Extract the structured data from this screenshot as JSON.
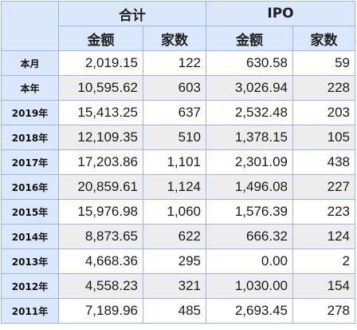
{
  "table": {
    "groups": [
      {
        "label": "合计"
      },
      {
        "label": "IPO"
      }
    ],
    "subheaders": [
      "金额",
      "家数",
      "金额",
      "家数"
    ],
    "rows": [
      {
        "label": "本月",
        "values": [
          "2,019.15",
          "122",
          "630.58",
          "59"
        ]
      },
      {
        "label": "本年",
        "values": [
          "10,595.62",
          "603",
          "3,026.94",
          "228"
        ]
      },
      {
        "label": "2019年",
        "values": [
          "15,413.25",
          "637",
          "2,532.48",
          "203"
        ]
      },
      {
        "label": "2018年",
        "values": [
          "12,109.35",
          "510",
          "1,378.15",
          "105"
        ]
      },
      {
        "label": "2017年",
        "values": [
          "17,203.86",
          "1,101",
          "2,301.09",
          "438"
        ]
      },
      {
        "label": "2016年",
        "values": [
          "20,859.61",
          "1,124",
          "1,496.08",
          "227"
        ]
      },
      {
        "label": "2015年",
        "values": [
          "15,976.98",
          "1,060",
          "1,576.39",
          "223"
        ]
      },
      {
        "label": "2014年",
        "values": [
          "8,873.65",
          "622",
          "666.32",
          "124"
        ]
      },
      {
        "label": "2013年",
        "values": [
          "4,668.36",
          "295",
          "0.00",
          "2"
        ]
      },
      {
        "label": "2012年",
        "values": [
          "4,558.23",
          "321",
          "1,030.00",
          "154"
        ]
      },
      {
        "label": "2011年",
        "values": [
          "7,189.96",
          "485",
          "2,693.45",
          "278"
        ]
      }
    ]
  },
  "colors": {
    "header_bg": "#dbe7fa",
    "border": "#9db6dd",
    "stripe": "#ededed"
  }
}
